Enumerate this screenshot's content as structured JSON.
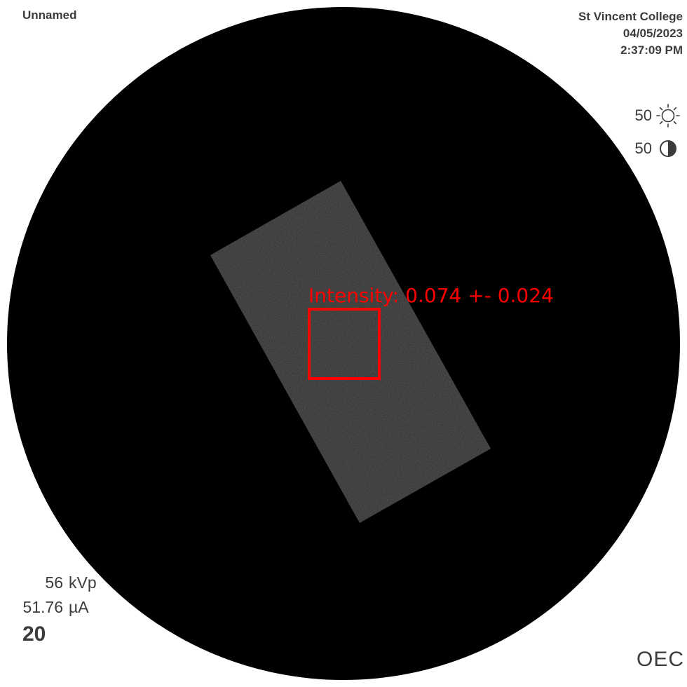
{
  "header": {
    "patient_name": "Unnamed",
    "institution": "St Vincent College",
    "date": "04/05/2023",
    "time": "2:37:09 PM"
  },
  "adjustments": {
    "brightness_value": "50",
    "brightness_icon": "sun-icon",
    "contrast_value": "50",
    "contrast_icon": "contrast-icon"
  },
  "roi": {
    "label": "Intensity: 0.074 +- 0.024",
    "color": "#ff0000"
  },
  "technique": {
    "kv_value": "56",
    "kv_unit": "kVp",
    "current_value": "51.76",
    "current_unit": "µA",
    "frame_number": "20"
  },
  "branding": {
    "logo_text": "OEC"
  },
  "colors": {
    "background": "#ffffff",
    "field": "#000000",
    "text": "#3c3c3c",
    "sample": "#2a2a2a",
    "roi": "#ff0000"
  }
}
